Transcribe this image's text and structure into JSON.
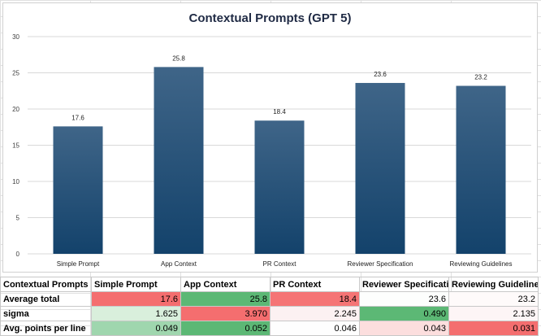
{
  "chart_data": {
    "type": "bar",
    "title": "Contextual Prompts (GPT 5)",
    "categories": [
      "Simple Prompt",
      "App Context",
      "PR Context",
      "Reviewer Specification",
      "Reviewing Guidelines"
    ],
    "values": [
      17.6,
      25.8,
      18.4,
      23.6,
      23.2
    ],
    "value_labels": [
      "17.6",
      "25.8",
      "18.4",
      "23.6",
      "23.2"
    ],
    "ylim": [
      0,
      30
    ],
    "yticks": [
      "0",
      "5",
      "10",
      "15",
      "20",
      "25",
      "30"
    ],
    "grid": true,
    "bar_color_top": "#3f6588",
    "bar_color_bottom": "#13426b"
  },
  "table": {
    "header": [
      "Contextual Prompts",
      "Simple Prompt",
      "App Context",
      "PR Context",
      "Reviewer Specificatio",
      "Reviewing Guidelines"
    ],
    "rows": [
      {
        "label": "Average total",
        "cells": [
          "17.6",
          "25.8",
          "18.4",
          "23.6",
          "23.2"
        ],
        "colors": [
          "#f46e6f",
          "#5cb875",
          "#f57475",
          "#fdfefd",
          "#fefafa"
        ]
      },
      {
        "label": "sigma",
        "cells": [
          "1.625",
          "3.970",
          "2.245",
          "0.490",
          "2.135"
        ],
        "colors": [
          "#d9efdc",
          "#f46e6f",
          "#fcf1f2",
          "#5cb875",
          "#fdf5f6"
        ]
      },
      {
        "label": "Avg. points per line",
        "cells": [
          "0.049",
          "0.052",
          "0.046",
          "0.043",
          "0.031"
        ],
        "colors": [
          "#9fd6ae",
          "#5cb875",
          "#fefefe",
          "#fcdede",
          "#f46e6f"
        ]
      }
    ]
  }
}
